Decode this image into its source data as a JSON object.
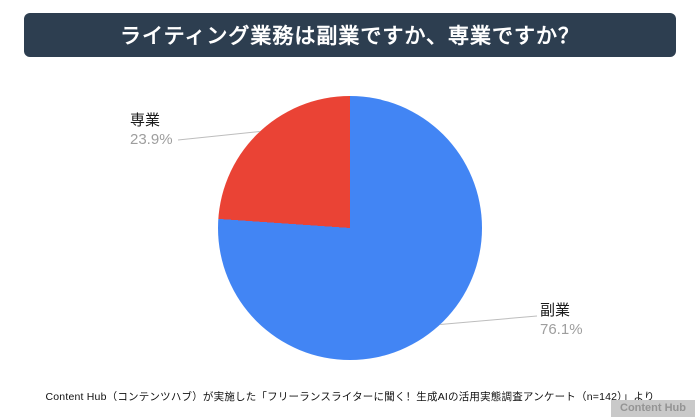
{
  "header": {
    "title": "ライティング業務は副業ですか、専業ですか？"
  },
  "chart_data": {
    "type": "pie",
    "title": "ライティング業務は副業ですか、専業ですか？",
    "slices": [
      {
        "label": "副業",
        "value": 76.1,
        "display": "76.1%",
        "color": "#4285f4"
      },
      {
        "label": "専業",
        "value": 23.9,
        "display": "23.9%",
        "color": "#ea4335"
      }
    ],
    "start_angle_deg": 0,
    "direction": "clockwise",
    "legend_position": "none",
    "leader_line_color": "#bdbdbd"
  },
  "footer": {
    "source": "Content Hub（コンテンツハブ）が実施した「フリーランスライターに聞く！生成AIの活用実態調査アンケート（n=142）」より"
  },
  "watermark": {
    "text": "Content Hub"
  }
}
